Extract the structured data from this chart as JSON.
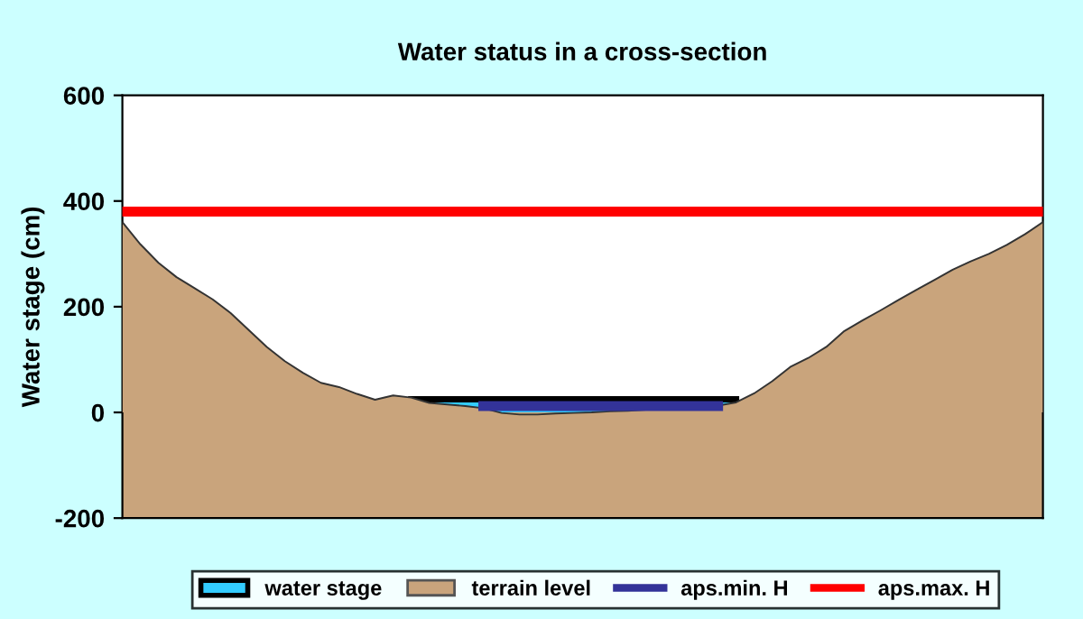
{
  "chart_data": {
    "type": "area",
    "title": "Water status in a cross-section",
    "ylabel": "Water stage (cm)",
    "categories": [
      null,
      null,
      null,
      null,
      null,
      null,
      null,
      null,
      null,
      null,
      null,
      null,
      null,
      null,
      null,
      null,
      null,
      null,
      null,
      null,
      null,
      null,
      null,
      null,
      null,
      null,
      null,
      null,
      null,
      null,
      null,
      null,
      null,
      null,
      null,
      null,
      null,
      null,
      null,
      null,
      null,
      null,
      null,
      null,
      null,
      null,
      null,
      null,
      null,
      null,
      null,
      null
    ],
    "ylim": [
      -200,
      600
    ],
    "yticks": [
      -200,
      0,
      200,
      400,
      600
    ],
    "grid": false,
    "bands": [
      {
        "axis": "y",
        "from": -200,
        "to": 0,
        "color": "#c9a47c"
      }
    ],
    "legend": "bottom",
    "series": [
      {
        "name": "water stage",
        "color": "#33ccff",
        "values": [
          null,
          null,
          null,
          null,
          null,
          null,
          null,
          null,
          null,
          null,
          null,
          null,
          null,
          null,
          null,
          null,
          25,
          25,
          25,
          25,
          25,
          25,
          25,
          25,
          25,
          25,
          25,
          25,
          25,
          25,
          25,
          25,
          25,
          25,
          25,
          null,
          null,
          null,
          null,
          null,
          null,
          null,
          null,
          null,
          null,
          null,
          null,
          null,
          null,
          null,
          null,
          null
        ]
      },
      {
        "name": "terrain level",
        "color": "#c9a47c",
        "values": [
          360,
          318,
          283,
          256,
          235,
          214,
          188,
          156,
          124,
          97,
          75,
          56,
          48,
          35,
          24,
          32,
          28,
          18,
          15,
          12,
          8,
          -1,
          -4,
          -4,
          -2,
          -1,
          0,
          2,
          3,
          5,
          6,
          7,
          9,
          13,
          19,
          36,
          59,
          86,
          103,
          124,
          154,
          174,
          193,
          213,
          232,
          251,
          270,
          286,
          300,
          317,
          337,
          360
        ]
      },
      {
        "name": "aps.min. H",
        "type": "line",
        "color": "#333399",
        "values": [
          null,
          null,
          null,
          null,
          null,
          null,
          null,
          null,
          null,
          null,
          null,
          null,
          null,
          null,
          null,
          null,
          null,
          null,
          null,
          null,
          12,
          12,
          12,
          12,
          12,
          12,
          12,
          12,
          12,
          12,
          12,
          12,
          12,
          12,
          null,
          null,
          null,
          null,
          null,
          null,
          null,
          null,
          null,
          null,
          null,
          null,
          null,
          null,
          null,
          null,
          null,
          null
        ]
      },
      {
        "name": "aps.max. H",
        "type": "line",
        "color": "#ff0000",
        "values": [
          380,
          380,
          380,
          380,
          380,
          380,
          380,
          380,
          380,
          380,
          380,
          380,
          380,
          380,
          380,
          380,
          380,
          380,
          380,
          380,
          380,
          380,
          380,
          380,
          380,
          380,
          380,
          380,
          380,
          380,
          380,
          380,
          380,
          380,
          380,
          380,
          380,
          380,
          380,
          380,
          380,
          380,
          380,
          380,
          380,
          380,
          380,
          380,
          380,
          380,
          380,
          380
        ]
      }
    ]
  }
}
